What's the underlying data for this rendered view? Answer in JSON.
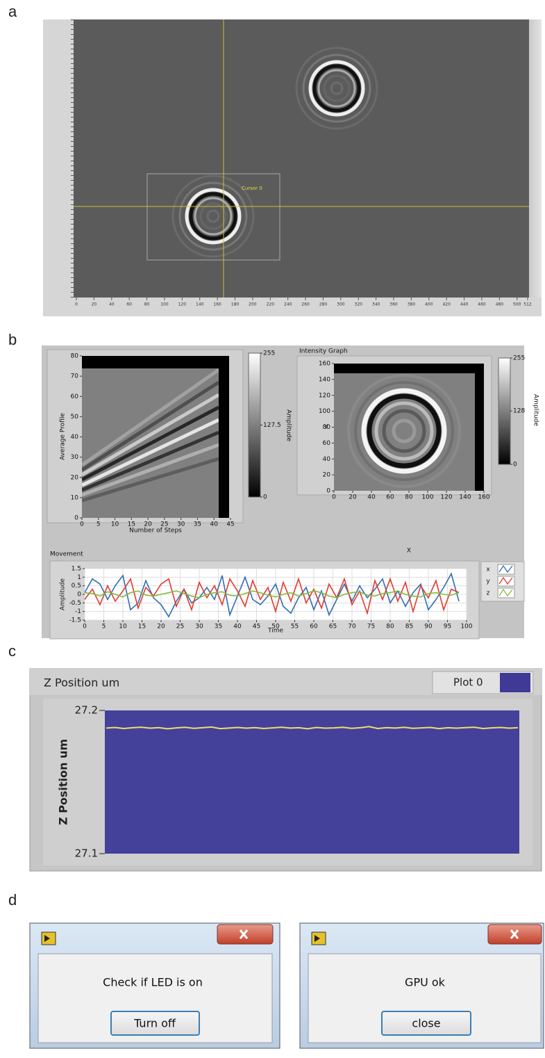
{
  "panel_labels": [
    "a",
    "b",
    "c",
    "d"
  ],
  "panel_a": {
    "cursor_label": "Cursor 0",
    "xlim": [
      0,
      512
    ],
    "xticks": [
      0,
      20,
      40,
      60,
      80,
      100,
      120,
      140,
      160,
      180,
      200,
      220,
      240,
      260,
      280,
      300,
      320,
      340,
      360,
      380,
      400,
      420,
      440,
      460,
      480,
      500,
      512
    ]
  },
  "panel_b": {
    "profile_graph": {
      "y_label": "Average Profile",
      "x_label": "Number of Steps",
      "xlim": [
        0,
        45
      ],
      "xticks": [
        0,
        5,
        10,
        15,
        20,
        25,
        30,
        35,
        40,
        45
      ],
      "ylim": [
        0,
        80
      ],
      "yticks": [
        0,
        10,
        20,
        30,
        40,
        50,
        60,
        70,
        80
      ],
      "colorbar_label": "Amplitude",
      "colorbar_lim": [
        0,
        255
      ],
      "colorbar_ticks": [
        255,
        127.5,
        0
      ]
    },
    "intensity_graph": {
      "title": "Intensity Graph",
      "x_label": "X",
      "y_label": "Y",
      "xlim": [
        0,
        160
      ],
      "xticks": [
        0,
        20,
        40,
        60,
        80,
        100,
        120,
        140,
        160
      ],
      "ylim": [
        0,
        160
      ],
      "yticks": [
        0,
        20,
        40,
        60,
        80,
        100,
        120,
        140,
        160
      ],
      "colorbar_label": "Amplitude",
      "colorbar_lim": [
        0,
        255
      ],
      "colorbar_ticks": [
        255,
        128,
        0
      ]
    },
    "movement": {
      "type": "line",
      "title": "Movement",
      "x_label": "Time",
      "y_label": "Amplitude",
      "x": [
        0,
        2,
        4,
        6,
        8,
        10,
        12,
        14,
        16,
        18,
        20,
        22,
        24,
        26,
        28,
        30,
        32,
        34,
        36,
        38,
        40,
        42,
        44,
        46,
        48,
        50,
        52,
        54,
        56,
        58,
        60,
        62,
        64,
        66,
        68,
        70,
        72,
        74,
        76,
        78,
        80,
        82,
        84,
        86,
        88,
        90,
        92,
        94,
        96,
        98
      ],
      "series": [
        {
          "name": "x",
          "color": "#2f6db5",
          "values": [
            0.1,
            0.9,
            0.6,
            -0.3,
            0.5,
            1.1,
            -0.9,
            -0.5,
            0.8,
            -0.2,
            -0.6,
            -1.3,
            -0.4,
            0.3,
            -0.5,
            -0.2,
            0.4,
            -0.3,
            1.1,
            -1.2,
            -0.1,
            1.0,
            -0.3,
            -0.6,
            -0.1,
            0.6,
            -0.7,
            -1.1,
            -0.2,
            0.4,
            -0.9,
            0.2,
            -1.2,
            -0.3,
            0.6,
            -0.4,
            0.5,
            -0.2,
            0.3,
            0.9,
            -0.5,
            0.2,
            -0.7,
            0.1,
            0.6,
            -0.9,
            -0.3,
            0.4,
            1.2,
            -0.4
          ]
        },
        {
          "name": "y",
          "color": "#e03a2e",
          "values": [
            -0.3,
            0.3,
            -0.6,
            0.5,
            -0.4,
            0.2,
            0.9,
            -0.8,
            0.4,
            -0.1,
            0.6,
            0.9,
            -0.7,
            0.3,
            -0.9,
            0.7,
            -0.2,
            0.5,
            -0.6,
            0.9,
            0.2,
            -0.7,
            0.8,
            -0.3,
            0.4,
            -1.0,
            0.7,
            -0.4,
            0.9,
            -0.5,
            0.3,
            -0.8,
            0.6,
            -0.2,
            0.9,
            -0.6,
            0.2,
            -1.1,
            0.8,
            -0.3,
            0.9,
            -0.4,
            0.7,
            -1.0,
            0.5,
            -0.2,
            0.8,
            -0.9,
            0.3,
            0.1
          ]
        },
        {
          "name": "z",
          "color": "#7cbf3c",
          "values": [
            0.1,
            0.05,
            -0.1,
            0.15,
            0.0,
            -0.15,
            0.1,
            0.2,
            -0.05,
            -0.1,
            0.0,
            0.1,
            0.2,
            0.05,
            -0.1,
            -0.2,
            0.0,
            0.1,
            0.15,
            -0.05,
            -0.1,
            0.05,
            0.2,
            0.1,
            -0.05,
            -0.15,
            0.0,
            0.1,
            -0.1,
            0.05,
            0.2,
            0.1,
            -0.1,
            -0.2,
            0.0,
            0.1,
            0.15,
            -0.05,
            -0.1,
            0.05,
            0.1,
            0.2,
            0.0,
            -0.1,
            -0.15,
            0.05,
            0.1,
            0.0,
            -0.05,
            0.1
          ]
        }
      ],
      "xlim": [
        0,
        100
      ],
      "xticks": [
        0,
        5,
        10,
        15,
        20,
        25,
        30,
        35,
        40,
        45,
        50,
        55,
        60,
        65,
        70,
        75,
        80,
        85,
        90,
        95,
        100
      ],
      "ylim": [
        -1.5,
        1.5
      ],
      "yticks": [
        -1.5,
        -1,
        -0.5,
        0,
        0.5,
        1,
        1.5
      ],
      "grid": true
    }
  },
  "panel_c": {
    "type": "line",
    "title": "Z Position um",
    "legend": "Plot 0",
    "legend_color": "#3f3a96",
    "y_label": "Z Position um",
    "color": "#f2dc70",
    "ylim": [
      27.1,
      27.2
    ],
    "yticks": [
      27.1,
      27.2
    ],
    "values": [
      27.1877,
      27.1881,
      27.1874,
      27.1879,
      27.1883,
      27.1876,
      27.188,
      27.1872,
      27.1878,
      27.1882,
      27.1875,
      27.1879,
      27.1884,
      27.1873,
      27.1877,
      27.1881,
      27.1876,
      27.188,
      27.1874,
      27.1878,
      27.1883,
      27.1877,
      27.1879,
      27.1872,
      27.1881,
      27.1876,
      27.1878,
      27.1882,
      27.1875,
      27.1879,
      27.1887,
      27.1874,
      27.188,
      27.1877,
      27.1882,
      27.1875,
      27.1878,
      27.1881,
      27.1873,
      27.1879,
      27.1876,
      27.188,
      27.1883,
      27.1874,
      27.1878,
      27.1881,
      27.1876,
      27.1879
    ]
  },
  "panel_d": {
    "dialogs": [
      {
        "message": "Check if LED is on",
        "button": "Turn off"
      },
      {
        "message": "GPU ok",
        "button": "close"
      }
    ]
  }
}
